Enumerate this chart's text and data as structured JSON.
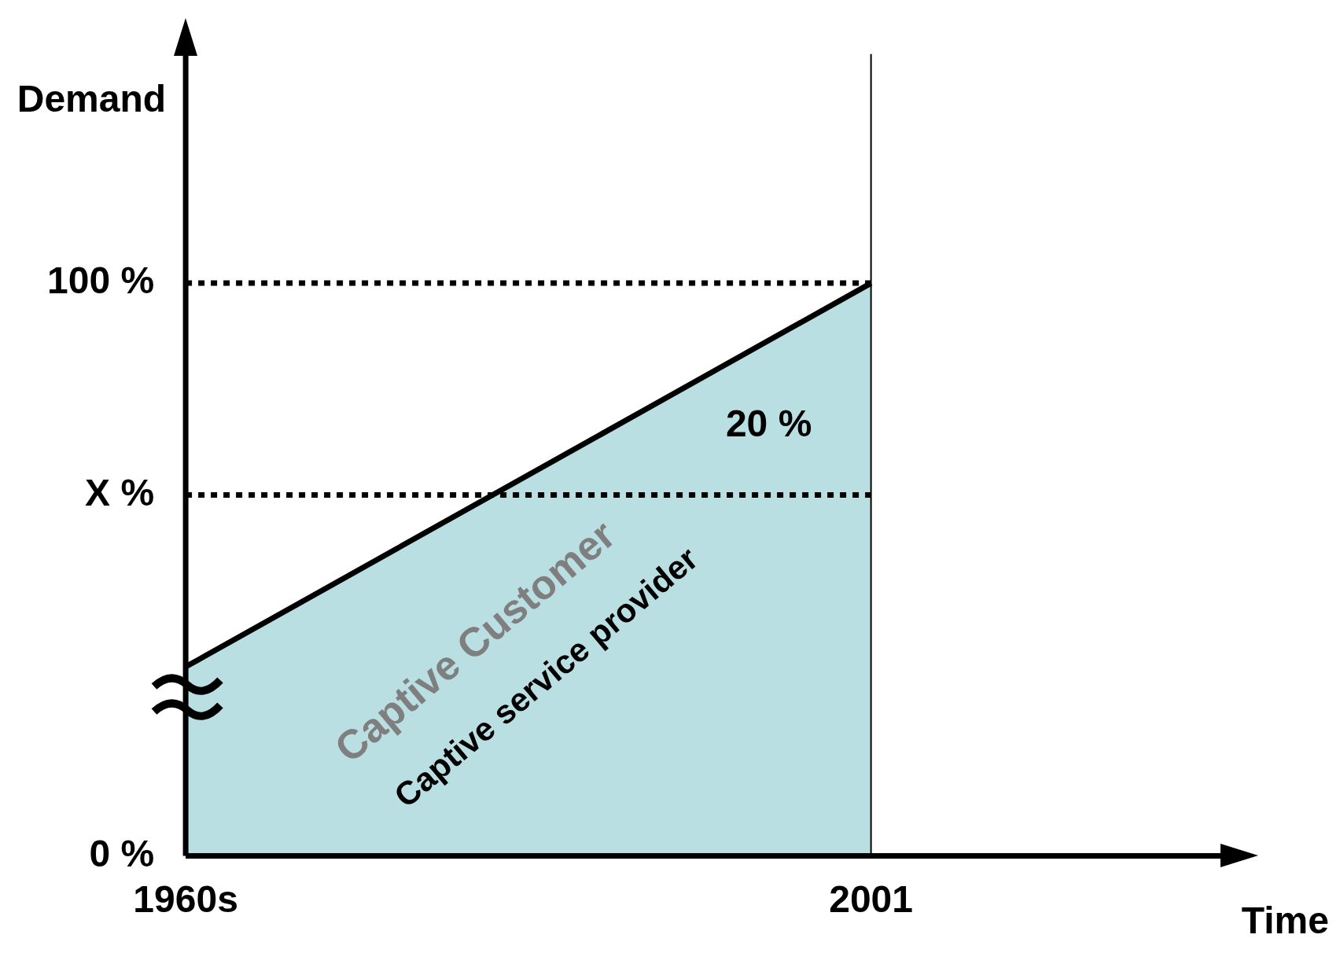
{
  "chart_data": {
    "type": "area",
    "xlabel": "Time",
    "ylabel": "Demand",
    "x": [
      1960,
      2001
    ],
    "series": [
      {
        "color": "#b9dfe3",
        "values": [
          33,
          100
        ]
      }
    ],
    "xlim": [
      1960,
      2022
    ],
    "xticks": [
      {
        "value": 1960,
        "label": "1960s"
      },
      2001
    ],
    "ylim": [
      0,
      140
    ],
    "yticks": [
      {
        "value": 0,
        "label": "0 %"
      },
      {
        "value": 63,
        "label": "X %"
      },
      {
        "value": 100,
        "label": "100 %"
      }
    ],
    "ref_lines": [
      {
        "axis": "y",
        "value": 63,
        "color": "#000000",
        "line_style": "dotted"
      },
      {
        "axis": "y",
        "value": 100,
        "color": "#000000",
        "line_style": "dotted"
      },
      {
        "axis": "x",
        "value": 2001,
        "color": "#000000",
        "line_style": "solid"
      }
    ],
    "annotations": [
      "20 %",
      "Captive Customer",
      "Captive service provider"
    ],
    "grid": false,
    "legend": false,
    "marker": "none",
    "line_style": "solid"
  }
}
